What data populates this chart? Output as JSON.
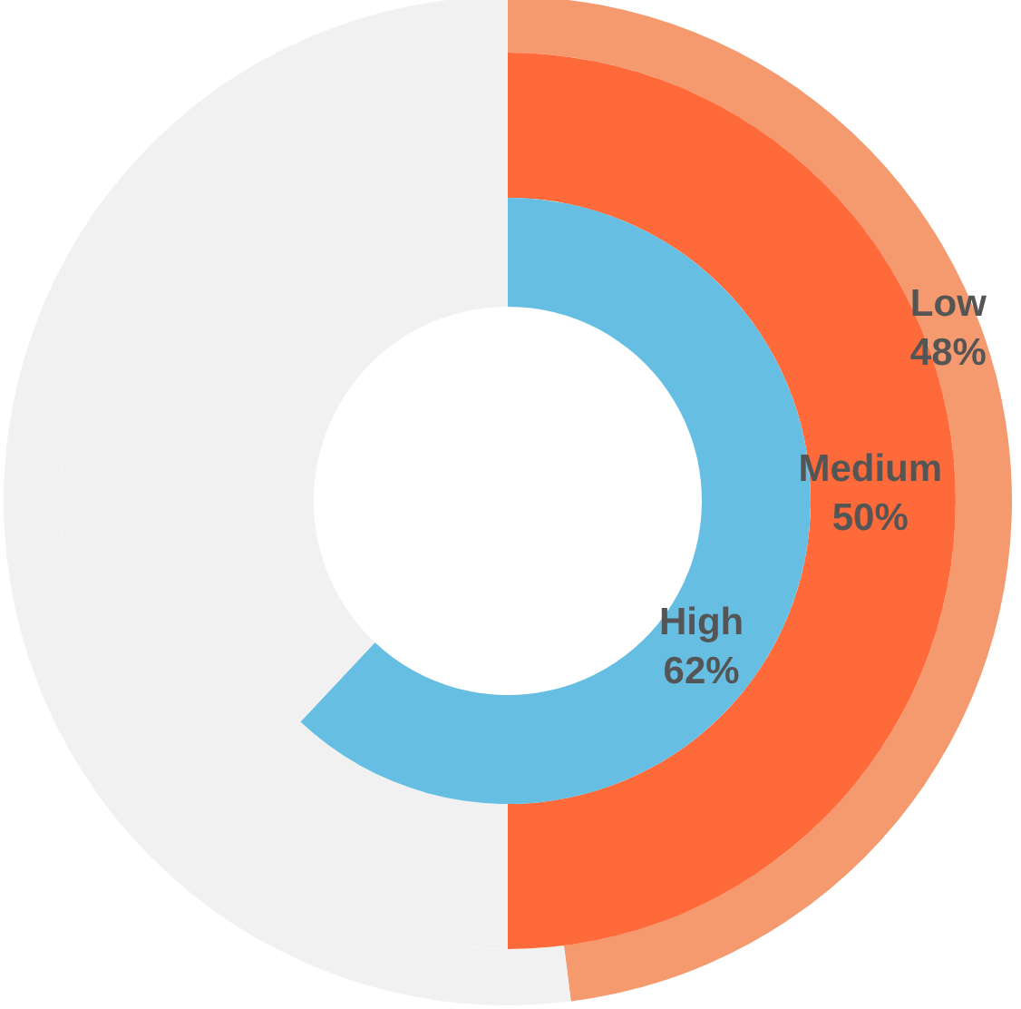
{
  "chart_data": {
    "type": "donut",
    "categories": [
      null,
      null
    ],
    "series": [
      {
        "name": "Low",
        "colors": [
          "#f59a6e",
          "#f1f1f1"
        ],
        "values": [
          48,
          52
        ],
        "value_labels": [
          "48%",
          null
        ]
      },
      {
        "name": "Medium",
        "colors": [
          "#ff6a3a",
          "#f1f1f1"
        ],
        "values": [
          50,
          50
        ],
        "value_labels": [
          "50%",
          null
        ]
      },
      {
        "name": "High",
        "colors": [
          "#66bfe3",
          "#f1f1f1"
        ],
        "values": [
          62,
          38
        ],
        "value_labels": [
          "62%",
          null
        ]
      }
    ]
  }
}
